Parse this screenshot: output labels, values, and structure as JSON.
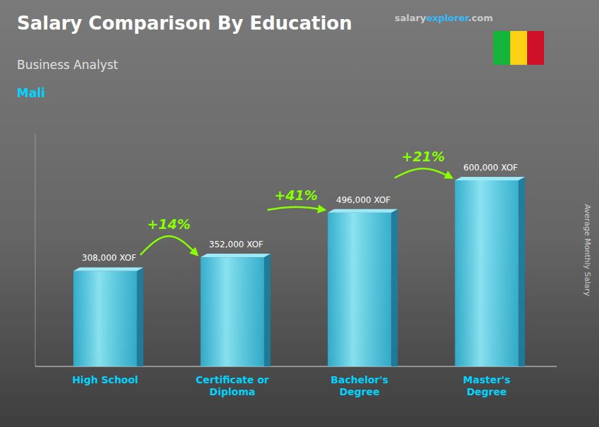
{
  "chart_data": {
    "type": "bar",
    "title": "Salary Comparison By Education",
    "subtitle": "Business Analyst",
    "country": "Mali",
    "ylabel": "Average Monthly Salary",
    "categories": [
      "High School",
      "Certificate or\nDiploma",
      "Bachelor's\nDegree",
      "Master's\nDegree"
    ],
    "values": [
      308000,
      352000,
      496000,
      600000
    ],
    "value_labels": [
      "308,000 XOF",
      "352,000 XOF",
      "496,000 XOF",
      "600,000 XOF"
    ],
    "data_labels": true,
    "annotations": [
      "+14%",
      "+41%",
      "+21%"
    ],
    "source": [
      "salary",
      "explorer",
      ".com"
    ],
    "color": "#29c8f0",
    "ylim": [
      0,
      750000
    ],
    "yticks": [],
    "tick_labels": "x"
  }
}
